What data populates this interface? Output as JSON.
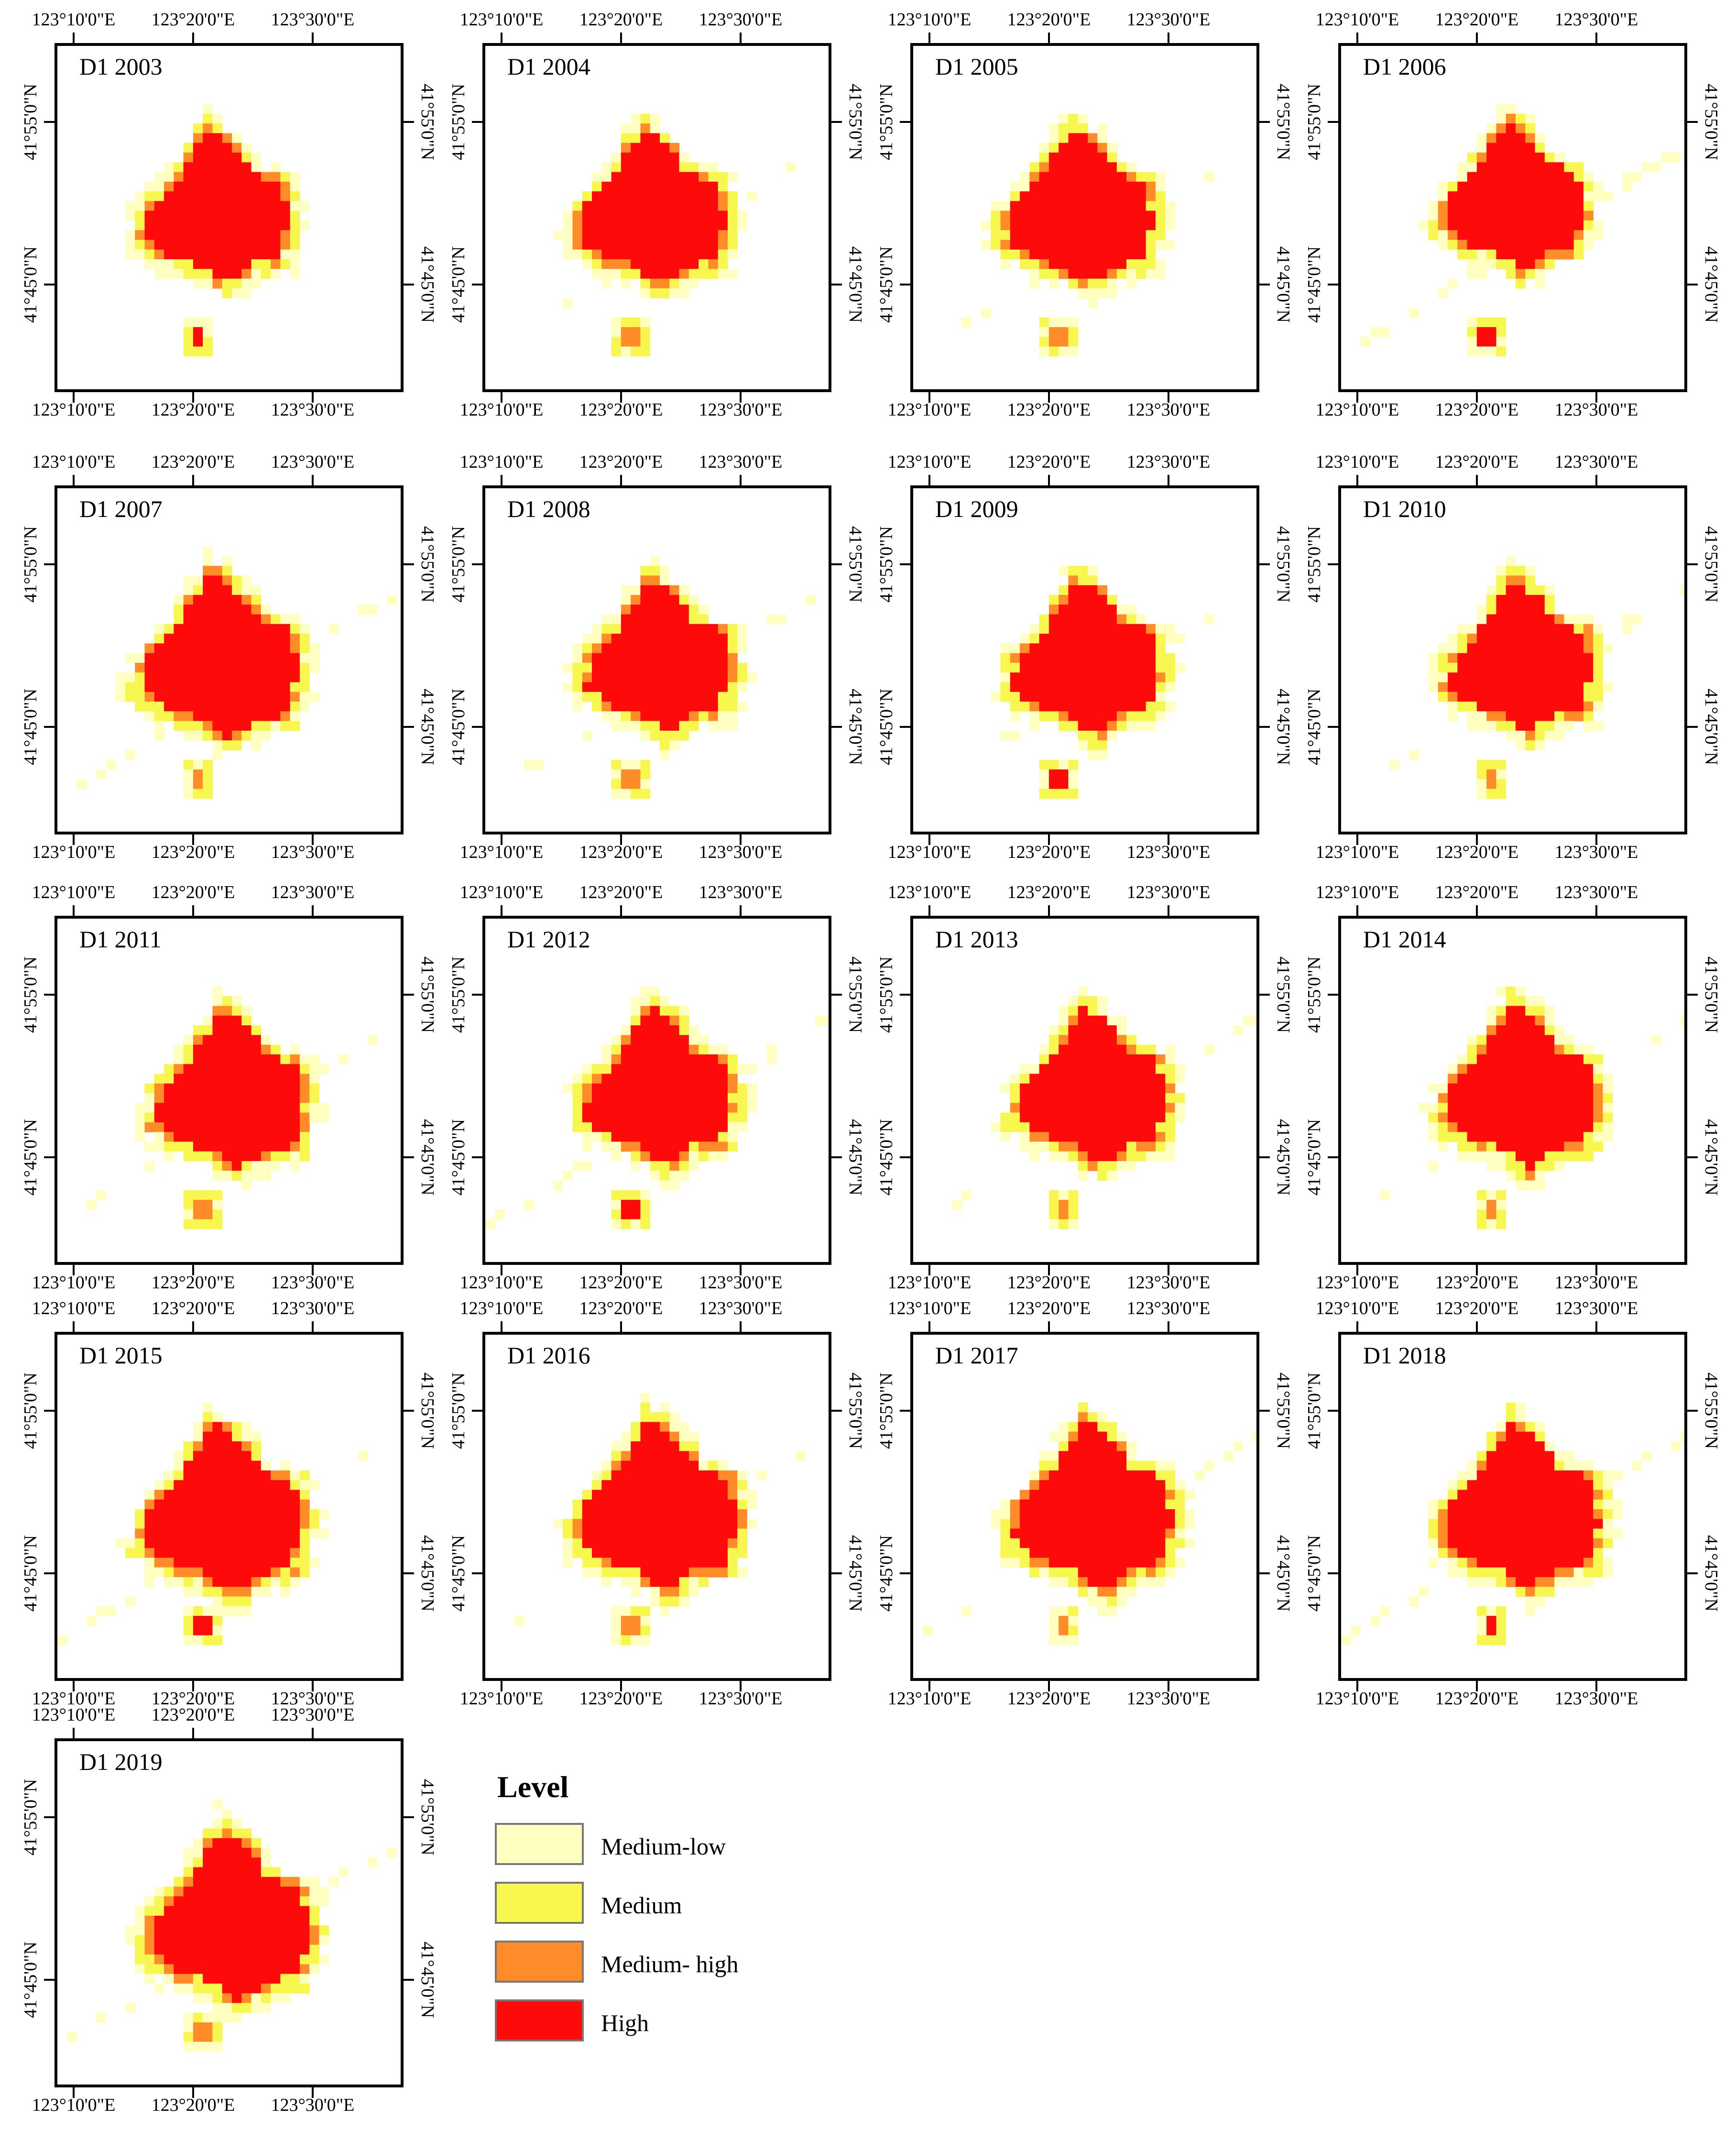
{
  "figure": {
    "colors": {
      "medium_low": "#FFFFC2",
      "medium": "#F7F74F",
      "medium_high": "#FF8C28",
      "high": "#FF0A0A"
    },
    "ticks_lon": [
      "123°10'0\"E",
      "123°20'0\"E",
      "123°30'0\"E"
    ],
    "ticks_lat": [
      "41°55'0\"N",
      "41°45'0\"N"
    ],
    "panels": [
      {
        "title": "D1 2003",
        "scale": 0.92,
        "dx": -0.04,
        "dy": 0.0,
        "streak": 0
      },
      {
        "title": "D1 2004",
        "scale": 0.94,
        "dx": -0.02,
        "dy": 0.0,
        "streak": 0.3
      },
      {
        "title": "D1 2005",
        "scale": 0.95,
        "dx": -0.02,
        "dy": 0.0,
        "streak": 0.2
      },
      {
        "title": "D1 2006",
        "scale": 0.9,
        "dx": 0.0,
        "dy": -0.03,
        "streak": 1
      },
      {
        "title": "D1 2007",
        "scale": 1.0,
        "dx": -0.03,
        "dy": 0.02,
        "streak": 0.5
      },
      {
        "title": "D1 2008",
        "scale": 0.93,
        "dx": 0.0,
        "dy": 0.02,
        "streak": 0.6
      },
      {
        "title": "D1 2009",
        "scale": 0.94,
        "dx": 0.0,
        "dy": 0.02,
        "streak": 0.3
      },
      {
        "title": "D1 2010",
        "scale": 0.92,
        "dx": 0.02,
        "dy": 0.02,
        "streak": 0.4
      },
      {
        "title": "D1 2011",
        "scale": 0.96,
        "dx": 0.0,
        "dy": 0.03,
        "streak": 0.4
      },
      {
        "title": "D1 2012",
        "scale": 0.95,
        "dx": 0.0,
        "dy": 0.02,
        "streak": 0.6
      },
      {
        "title": "D1 2013",
        "scale": 0.95,
        "dx": 0.02,
        "dy": 0.02,
        "streak": 0.6
      },
      {
        "title": "D1 2014",
        "scale": 0.98,
        "dx": 0.02,
        "dy": 0.02,
        "streak": 0.3
      },
      {
        "title": "D1 2015",
        "scale": 1.02,
        "dx": -0.02,
        "dy": 0.04,
        "streak": 0.4
      },
      {
        "title": "D1 2016",
        "scale": 1.02,
        "dx": 0.0,
        "dy": 0.03,
        "streak": 0.5
      },
      {
        "title": "D1 2017",
        "scale": 1.02,
        "dx": 0.02,
        "dy": 0.03,
        "streak": 0.7
      },
      {
        "title": "D1 2018",
        "scale": 1.0,
        "dx": 0.02,
        "dy": 0.03,
        "streak": 0.7
      },
      {
        "title": "D1 2019",
        "scale": 1.03,
        "dx": 0.0,
        "dy": 0.04,
        "streak": 0.6
      }
    ]
  },
  "legend": {
    "title": "Level",
    "items": [
      {
        "label": "Medium-low",
        "color": "#FFFFC2"
      },
      {
        "label": "Medium",
        "color": "#F7F74F"
      },
      {
        "label": "Medium- high",
        "color": "#FF8C28"
      },
      {
        "label": "High",
        "color": "#FF0A0A"
      }
    ]
  }
}
